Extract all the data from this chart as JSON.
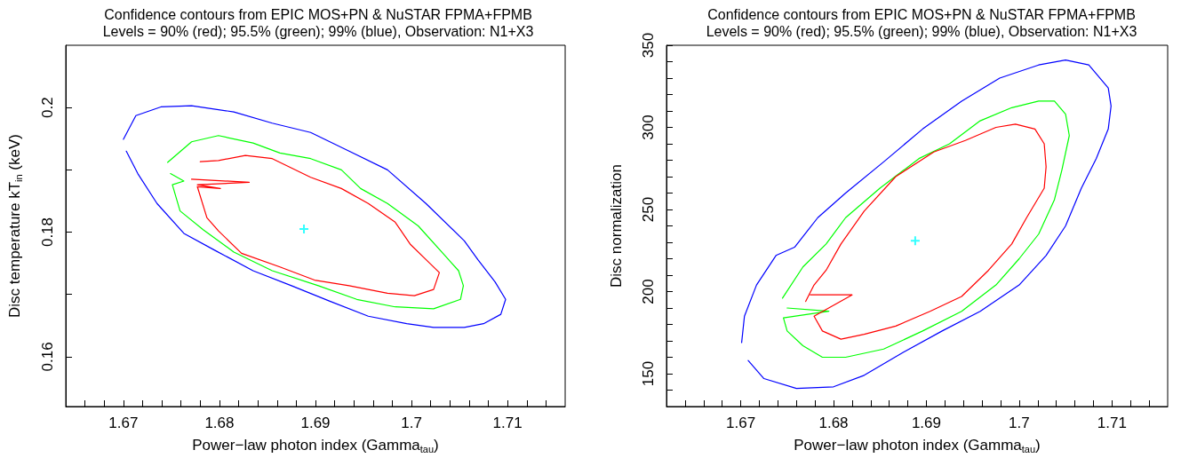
{
  "chart_data": [
    {
      "type": "line",
      "title": "Confidence contours from EPIC MOS+PN & NuSTAR FPMA+FPMB",
      "subtitle": "Levels = 90% (red); 95.5% (green); 99% (blue), Observation: N1+X3",
      "xlabel": "Power−law photon index (Gamma$_{tau}$)",
      "ylabel": "Disc temperature kT$_{in}$ (keV)",
      "xlim": [
        1.664,
        1.716
      ],
      "ylim": [
        0.152,
        0.21
      ],
      "xticks": [
        {
          "value": 1.666,
          "label": null
        },
        {
          "value": 1.668,
          "label": null
        },
        1.67,
        {
          "value": 1.672,
          "label": null
        },
        {
          "value": 1.674,
          "label": null
        },
        {
          "value": 1.676,
          "label": null
        },
        {
          "value": 1.678,
          "label": null
        },
        1.68,
        {
          "value": 1.682,
          "label": null
        },
        {
          "value": 1.684,
          "label": null
        },
        {
          "value": 1.686,
          "label": null
        },
        {
          "value": 1.688,
          "label": null
        },
        1.69,
        {
          "value": 1.692,
          "label": null
        },
        {
          "value": 1.694,
          "label": null
        },
        {
          "value": 1.696,
          "label": null
        },
        {
          "value": 1.698,
          "label": null
        },
        {
          "value": 1.7,
          "label": "1.7"
        },
        {
          "value": 1.702,
          "label": null
        },
        {
          "value": 1.704,
          "label": null
        },
        {
          "value": 1.706,
          "label": null
        },
        {
          "value": 1.708,
          "label": null
        },
        1.71,
        {
          "value": 1.712,
          "label": null
        },
        {
          "value": 1.714,
          "label": null
        }
      ],
      "yticks": [
        0.16,
        {
          "value": 0.17,
          "label": null
        },
        0.18,
        {
          "value": 0.19,
          "label": null
        },
        {
          "value": 0.2,
          "label": "0.2"
        }
      ],
      "marker": "none",
      "line_style": "solid",
      "series": [
        {
          "color": "#0000ff",
          "x": [
            1.67,
            1.6713,
            1.6739,
            1.6771,
            1.6815,
            1.6855,
            1.6895,
            1.6935,
            1.6975,
            1.7015,
            1.7055,
            1.7069,
            1.7087,
            1.7098,
            1.7093,
            1.7075,
            1.7055,
            1.7023,
            1.6995,
            1.6955,
            1.6915,
            1.6875,
            1.6835,
            1.6795,
            1.6763,
            1.6735,
            1.6715,
            1.6703
          ],
          "values": [
            0.1949,
            0.1987,
            0.2001,
            0.2003,
            0.1993,
            0.1975,
            0.196,
            0.193,
            0.19,
            0.1846,
            0.1786,
            0.1756,
            0.172,
            0.1692,
            0.1668,
            0.1653,
            0.1647,
            0.1647,
            0.1653,
            0.1665,
            0.1689,
            0.1714,
            0.1738,
            0.1771,
            0.1798,
            0.1846,
            0.1894,
            0.193
          ]
        },
        {
          "color": "#00ff00",
          "x": [
            1.6746,
            1.6771,
            1.6799,
            1.6835,
            1.6863,
            1.6895,
            1.6927,
            1.6947,
            1.6975,
            1.7007,
            1.7035,
            1.7049,
            1.7054,
            1.7051,
            1.7023,
            1.6983,
            1.6943,
            1.6903,
            1.6855,
            1.6815,
            1.6783,
            1.6759,
            1.6751,
            1.6763,
            1.6749
          ],
          "values": [
            0.1912,
            0.1945,
            0.1955,
            0.1943,
            0.1927,
            0.1918,
            0.19,
            0.187,
            0.1846,
            0.181,
            0.1762,
            0.1738,
            0.1714,
            0.1692,
            0.1677,
            0.168,
            0.1692,
            0.1714,
            0.1738,
            0.1768,
            0.1804,
            0.1834,
            0.1876,
            0.1882,
            0.1894
          ]
        },
        {
          "color": "#ff0000",
          "x": [
            1.678,
            1.6799,
            1.6827,
            1.6855,
            1.6895,
            1.6927,
            1.6955,
            1.6983,
            1.6999,
            1.7015,
            1.7029,
            1.7023,
            1.7003,
            1.6975,
            1.6935,
            1.6899,
            1.6863,
            1.6823,
            1.6799,
            1.6787,
            1.6777,
            1.6801,
            1.6777,
            1.6831,
            1.6771
          ],
          "values": [
            0.1913,
            0.1915,
            0.1923,
            0.1918,
            0.1888,
            0.187,
            0.1846,
            0.1816,
            0.178,
            0.1756,
            0.1735,
            0.1708,
            0.1698,
            0.1702,
            0.1714,
            0.1723,
            0.1744,
            0.1766,
            0.1802,
            0.1823,
            0.1873,
            0.187,
            0.1876,
            0.188,
            0.1885
          ]
        },
        {
          "type": "scatter",
          "marker": "cross",
          "color": "#00ffff",
          "x": [
            1.6888
          ],
          "values": [
            0.1805
          ]
        }
      ]
    },
    {
      "type": "line",
      "title": "Confidence contours from EPIC MOS+PN & NuSTAR FPMA+FPMB",
      "subtitle": "Levels = 90% (red); 95.5% (green); 99% (blue), Observation: N1+X3",
      "xlabel": "Power−law photon index (Gamma$_{tau}$)",
      "ylabel": "Disc normalization",
      "xlim": [
        1.662,
        1.716
      ],
      "ylim": [
        130,
        350
      ],
      "xticks": [
        {
          "value": 1.664,
          "label": null
        },
        {
          "value": 1.666,
          "label": null
        },
        {
          "value": 1.668,
          "label": null
        },
        1.67,
        {
          "value": 1.672,
          "label": null
        },
        {
          "value": 1.674,
          "label": null
        },
        {
          "value": 1.676,
          "label": null
        },
        {
          "value": 1.678,
          "label": null
        },
        1.68,
        {
          "value": 1.682,
          "label": null
        },
        {
          "value": 1.684,
          "label": null
        },
        {
          "value": 1.686,
          "label": null
        },
        {
          "value": 1.688,
          "label": null
        },
        1.69,
        {
          "value": 1.692,
          "label": null
        },
        {
          "value": 1.694,
          "label": null
        },
        {
          "value": 1.696,
          "label": null
        },
        {
          "value": 1.698,
          "label": null
        },
        {
          "value": 1.7,
          "label": "1.7"
        },
        {
          "value": 1.702,
          "label": null
        },
        {
          "value": 1.704,
          "label": null
        },
        {
          "value": 1.706,
          "label": null
        },
        {
          "value": 1.708,
          "label": null
        },
        1.71,
        {
          "value": 1.712,
          "label": null
        },
        {
          "value": 1.714,
          "label": null
        }
      ],
      "yticks": [
        {
          "value": 140,
          "label": null
        },
        150,
        {
          "value": 160,
          "label": null
        },
        {
          "value": 170,
          "label": null
        },
        {
          "value": 180,
          "label": null
        },
        {
          "value": 190,
          "label": null
        },
        200,
        {
          "value": 210,
          "label": null
        },
        {
          "value": 220,
          "label": null
        },
        {
          "value": 230,
          "label": null
        },
        {
          "value": 240,
          "label": null
        },
        250,
        {
          "value": 260,
          "label": null
        },
        {
          "value": 270,
          "label": null
        },
        {
          "value": 280,
          "label": null
        },
        {
          "value": 290,
          "label": null
        },
        300,
        {
          "value": 310,
          "label": null
        },
        {
          "value": 320,
          "label": null
        },
        {
          "value": 330,
          "label": null
        },
        {
          "value": 340,
          "label": null
        },
        350
      ],
      "marker": "none",
      "line_style": "solid",
      "series": [
        {
          "color": "#0000ff",
          "x": [
            1.6701,
            1.6704,
            1.6717,
            1.6738,
            1.6758,
            1.6783,
            1.6813,
            1.6854,
            1.6896,
            1.6938,
            1.6979,
            1.7021,
            1.705,
            1.7075,
            1.7096,
            1.7099,
            1.7096,
            1.7083,
            1.7067,
            1.705,
            1.7029,
            1.7,
            1.6958,
            1.6917,
            1.6875,
            1.6833,
            1.68,
            1.676,
            1.6725,
            1.6708
          ],
          "values": [
            169,
            185,
            204,
            222,
            227,
            245,
            260,
            279,
            299,
            316,
            330,
            338,
            341,
            338,
            324,
            313,
            299,
            281,
            263,
            240,
            222,
            204,
            188,
            176,
            163,
            149,
            142,
            141,
            147,
            158
          ]
        },
        {
          "color": "#00ff00",
          "x": [
            1.6745,
            1.6767,
            1.6792,
            1.6813,
            1.685,
            1.6892,
            1.6925,
            1.6958,
            1.6992,
            1.7021,
            1.7038,
            1.705,
            1.7054,
            1.7046,
            1.7038,
            1.7021,
            1.7,
            1.6975,
            1.6938,
            1.6896,
            1.6854,
            1.6813,
            1.6788,
            1.6767,
            1.675,
            1.6746,
            1.6795,
            1.675
          ],
          "values": [
            196,
            215,
            229,
            245,
            263,
            281,
            290,
            304,
            312,
            316,
            316,
            308,
            295,
            274,
            256,
            235,
            220,
            204,
            188,
            176,
            165,
            160,
            160,
            167,
            176,
            184,
            188,
            190
          ]
        },
        {
          "color": "#ff0000",
          "x": [
            1.677,
            1.6779,
            1.6792,
            1.6808,
            1.6833,
            1.6867,
            1.6908,
            1.6942,
            1.6975,
            1.6996,
            1.7017,
            1.7027,
            1.7029,
            1.7027,
            1.7008,
            1.6992,
            1.6967,
            1.6938,
            1.6904,
            1.6867,
            1.6833,
            1.6808,
            1.6788,
            1.6779,
            1.682,
            1.6775
          ],
          "values": [
            194,
            204,
            213,
            229,
            249,
            270,
            285,
            292,
            300,
            302,
            299,
            290,
            276,
            263,
            245,
            229,
            213,
            197,
            188,
            179,
            174,
            171,
            176,
            185,
            198,
            198
          ]
        },
        {
          "type": "scatter",
          "marker": "cross",
          "color": "#00ffff",
          "x": [
            1.6888
          ],
          "values": [
            231
          ]
        }
      ]
    }
  ]
}
